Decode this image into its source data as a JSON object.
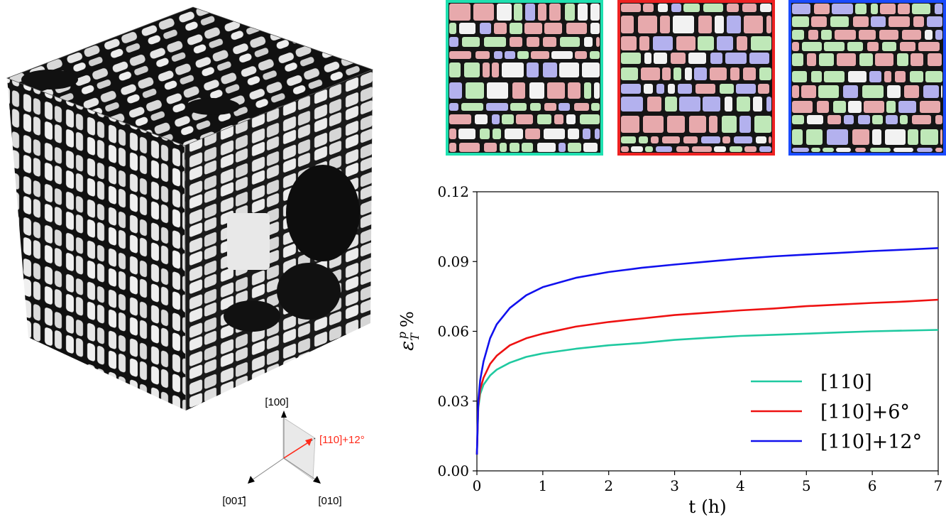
{
  "figure": {
    "cube": {
      "orientation_axes": [
        {
          "name": "axis-100",
          "label": "[100]",
          "color": "#000000"
        },
        {
          "name": "axis-001bar",
          "label": "[001̄]",
          "color": "#000000"
        },
        {
          "name": "axis-010",
          "label": "[010]",
          "color": "#000000"
        },
        {
          "name": "axis-110-12",
          "label": "[110]+12°",
          "color": "#ff2a1a"
        }
      ]
    },
    "micrographs": [
      {
        "name": "micrograph-110",
        "border_color": "#1fe0b0"
      },
      {
        "name": "micrograph-110-6",
        "border_color": "#ee2222"
      },
      {
        "name": "micrograph-110-12",
        "border_color": "#1a4bff"
      }
    ],
    "phase_colors": {
      "red": "#e7a9ac",
      "green": "#bfe8b8",
      "blue": "#b3b1ee",
      "white": "#f2f2f2",
      "matrix": "#151515"
    }
  },
  "chart_data": {
    "type": "line",
    "xlabel": "t (h)",
    "ylabel": "ε_T^p %",
    "ylabel_main": "ε",
    "ylabel_sub": "T",
    "ylabel_sup": "p",
    "ylabel_unit": "%",
    "xlim": [
      0,
      7
    ],
    "ylim": [
      0.0,
      0.12
    ],
    "x_ticks": [
      "0",
      "1",
      "2",
      "3",
      "4",
      "5",
      "6",
      "7"
    ],
    "y_ticks": [
      "0.00",
      "0.03",
      "0.06",
      "0.09",
      "0.12"
    ],
    "grid": false,
    "legend_position": "bottom-right",
    "series": [
      {
        "name": "[110]",
        "color": "#1fc9a0",
        "x": [
          0,
          0.02,
          0.05,
          0.1,
          0.2,
          0.3,
          0.5,
          0.75,
          1,
          1.5,
          2,
          2.5,
          3,
          3.5,
          4,
          4.5,
          5,
          5.5,
          6,
          6.5,
          7
        ],
        "y": [
          0.007,
          0.027,
          0.033,
          0.037,
          0.041,
          0.0435,
          0.0465,
          0.049,
          0.0505,
          0.0525,
          0.054,
          0.055,
          0.0563,
          0.0572,
          0.058,
          0.0585,
          0.059,
          0.0595,
          0.06,
          0.0603,
          0.0606
        ]
      },
      {
        "name": "[110]+6°",
        "color": "#ee1111",
        "x": [
          0,
          0.02,
          0.05,
          0.1,
          0.2,
          0.3,
          0.5,
          0.75,
          1,
          1.5,
          2,
          2.5,
          3,
          3.5,
          4,
          4.5,
          5,
          5.5,
          6,
          6.5,
          7
        ],
        "y": [
          0.007,
          0.028,
          0.035,
          0.04,
          0.046,
          0.0495,
          0.054,
          0.057,
          0.059,
          0.062,
          0.064,
          0.0655,
          0.067,
          0.068,
          0.069,
          0.0698,
          0.0708,
          0.0715,
          0.0722,
          0.0728,
          0.0736
        ]
      },
      {
        "name": "[110]+12°",
        "color": "#1111ee",
        "x": [
          0,
          0.02,
          0.05,
          0.1,
          0.2,
          0.3,
          0.5,
          0.75,
          1,
          1.5,
          2,
          2.5,
          3,
          3.5,
          4,
          4.5,
          5,
          5.5,
          6,
          6.5,
          7
        ],
        "y": [
          0.007,
          0.03,
          0.039,
          0.047,
          0.057,
          0.063,
          0.07,
          0.0755,
          0.079,
          0.083,
          0.0855,
          0.0873,
          0.0887,
          0.09,
          0.0912,
          0.0922,
          0.093,
          0.0937,
          0.0945,
          0.0951,
          0.0958
        ]
      }
    ]
  }
}
